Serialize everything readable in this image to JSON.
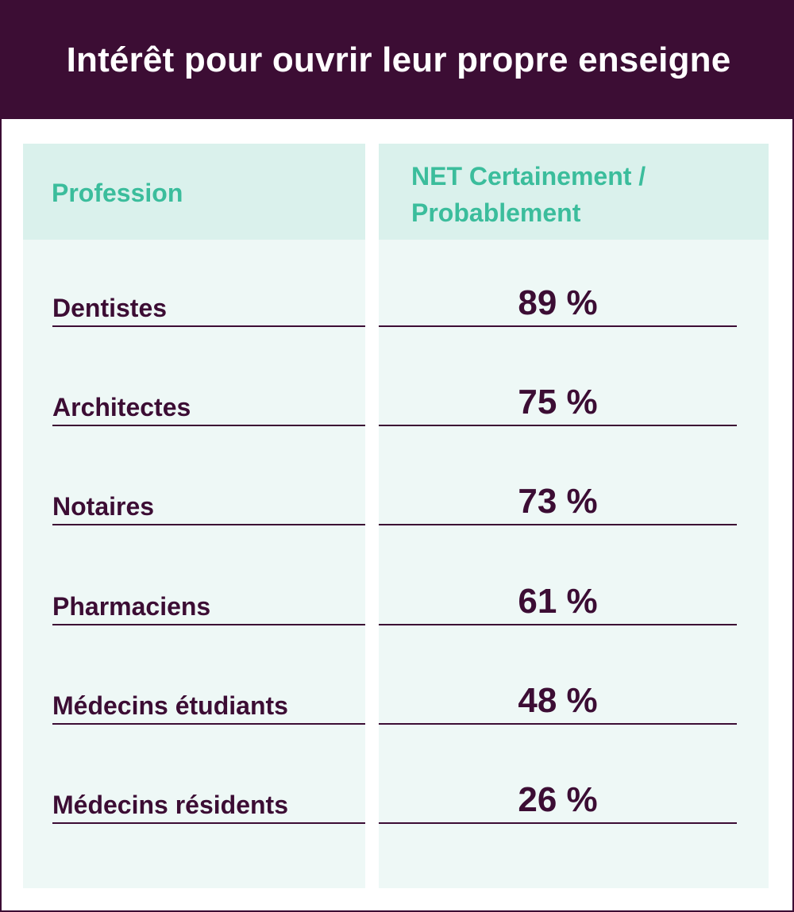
{
  "chart_data": {
    "type": "table",
    "title": "Intérêt pour ouvrir leur propre enseigne",
    "columns": [
      "Profession",
      "NET Certainement / Probablement"
    ],
    "rows": [
      {
        "profession": "Dentistes",
        "value": 89,
        "label": "89 %"
      },
      {
        "profession": "Architectes",
        "value": 75,
        "label": "75 %"
      },
      {
        "profession": "Notaires",
        "value": 73,
        "label": "73 %"
      },
      {
        "profession": "Pharmaciens",
        "value": 61,
        "label": "61 %"
      },
      {
        "profession": "Médecins étudiants",
        "value": 48,
        "label": "48 %"
      },
      {
        "profession": "Médecins résidents",
        "value": 26,
        "label": "26 %"
      }
    ]
  },
  "colors": {
    "title_background": "#3c0d34",
    "title_text": "#ffffff",
    "header_background": "#daf1ec",
    "header_text": "#3bbd9c",
    "column_background": "#eef8f6",
    "body_text": "#3c0d34"
  }
}
